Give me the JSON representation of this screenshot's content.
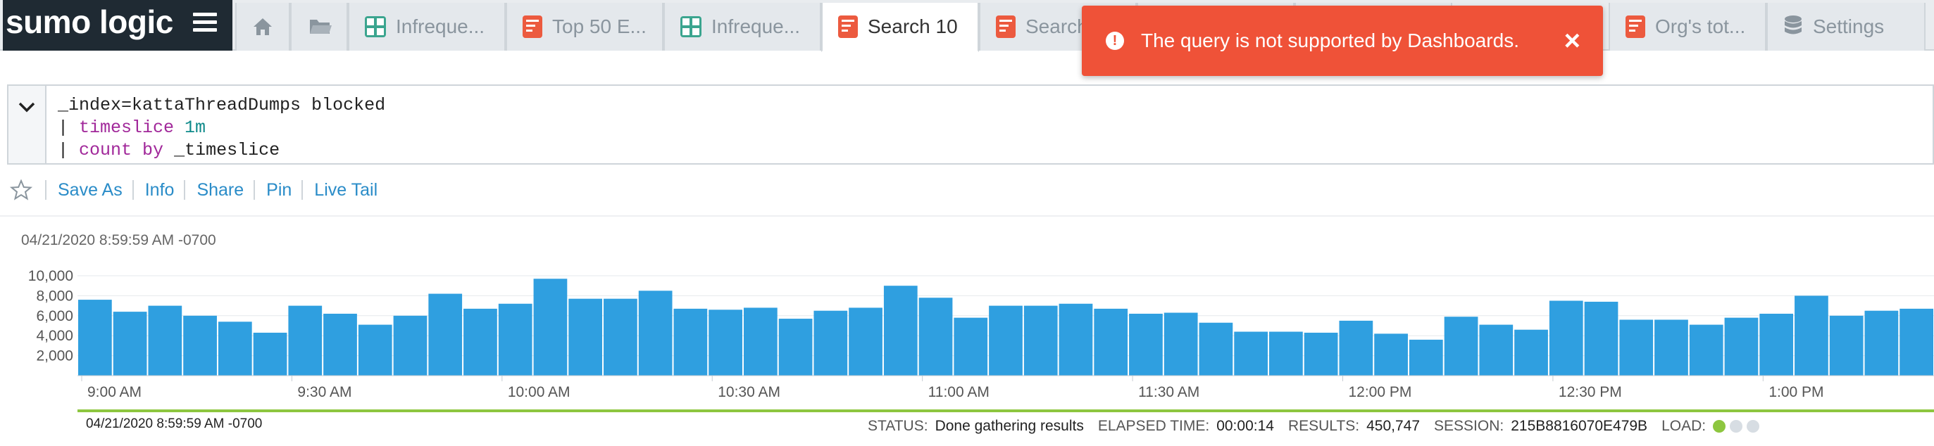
{
  "app": {
    "logo_text": "sumo logic"
  },
  "tabs": [
    {
      "label": "",
      "icon": "home-icon"
    },
    {
      "label": "",
      "icon": "folder-icon"
    },
    {
      "label": "Infreque...",
      "icon": "dashboard-icon"
    },
    {
      "label": "Top 50 E...",
      "icon": "search-doc-icon"
    },
    {
      "label": "Infreque...",
      "icon": "dashboard-icon"
    },
    {
      "label": "Search 10",
      "icon": "search-doc-icon",
      "active": true
    },
    {
      "label": "Search",
      "icon": "search-doc-icon"
    },
    {
      "label": "Org's tot...",
      "icon": "search-doc-icon"
    },
    {
      "label": "Settings",
      "icon": "database-icon"
    }
  ],
  "toast": {
    "message": "The query is not supported by Dashboards.",
    "close": "×"
  },
  "query": {
    "line1": "_index=kattaThreadDumps blocked",
    "line2_pipe": "| ",
    "line2_kw": "timeslice",
    "line2_arg": " 1m",
    "line3_pipe": "| ",
    "line3_kw1": "count",
    "line3_sp": " ",
    "line3_kw2": "by",
    "line3_arg": " _timeslice"
  },
  "actions": [
    "Save As",
    "Info",
    "Share",
    "Pin",
    "Live Tail"
  ],
  "range_top": "04/21/2020 8:59:59 AM -0700",
  "range_bottom": "04/21/2020 8:59:59 AM -0700",
  "status": {
    "status_label": "STATUS:",
    "status_value": "Done gathering results",
    "elapsed_label": "ELAPSED TIME:",
    "elapsed_value": "00:00:14",
    "results_label": "RESULTS:",
    "results_value": "450,747",
    "session_label": "SESSION:",
    "session_value": "215B8816070E479B",
    "load_label": "LOAD:"
  },
  "colors": {
    "bar": "#2f9fe0",
    "toast": "#ef5238",
    "progress": "#8dc63f",
    "link": "#2a8cc8"
  },
  "chart_data": {
    "type": "bar",
    "y_ticks": [
      "10,000",
      "8,000",
      "6,000",
      "4,000",
      "2,000"
    ],
    "y_tick_values": [
      10000,
      8000,
      6000,
      4000,
      2000
    ],
    "ylim": [
      0,
      10000
    ],
    "x_tick_labels": [
      "9:00 AM",
      "9:30 AM",
      "10:00 AM",
      "10:30 AM",
      "11:00 AM",
      "11:30 AM",
      "12:00 PM",
      "12:30 PM",
      "1:00 PM"
    ],
    "x_tick_bar_index": [
      0,
      6,
      12,
      18,
      24,
      30,
      36,
      42,
      48
    ],
    "values": [
      7600,
      6400,
      7000,
      6000,
      5400,
      4300,
      7000,
      6200,
      5100,
      6000,
      8200,
      6700,
      7200,
      9700,
      7700,
      7700,
      8500,
      6700,
      6600,
      6800,
      5700,
      6500,
      6800,
      9000,
      7800,
      5800,
      7000,
      7000,
      7200,
      6700,
      6200,
      6300,
      5300,
      4400,
      4400,
      4300,
      5500,
      4200,
      3600,
      5900,
      5100,
      4600,
      7500,
      7400,
      5600,
      5600,
      5100,
      5800,
      6200,
      8000,
      6000,
      6500,
      6700
    ],
    "grid": true,
    "legend": "none"
  }
}
